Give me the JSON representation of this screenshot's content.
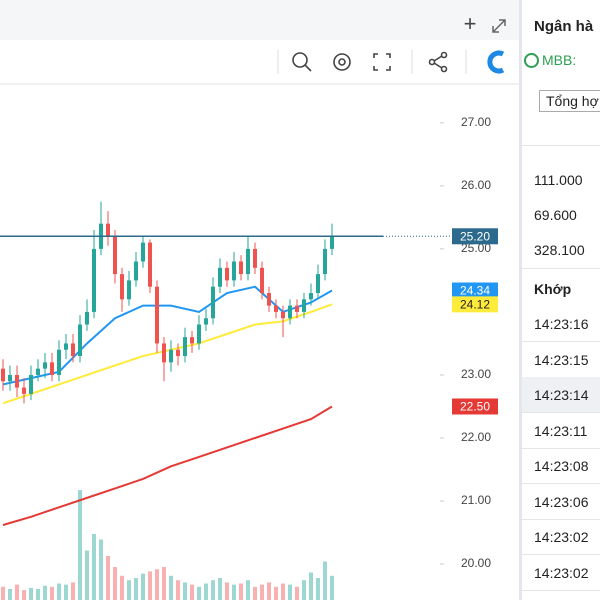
{
  "chart_data": {
    "type": "candlestick",
    "ylim": [
      19.43,
      27.6
    ],
    "yticks": [
      {
        "value": 27,
        "label": "27.00"
      },
      {
        "value": 26,
        "label": "26.00"
      },
      {
        "value": 25,
        "label": "25.00"
      },
      {
        "value": 23,
        "label": "23.00"
      },
      {
        "value": 22,
        "label": "22.00"
      },
      {
        "value": 21,
        "label": "21.00"
      },
      {
        "value": 20,
        "label": "20.00"
      }
    ],
    "up_color": "#26a69a",
    "down_color": "#ef5350",
    "open": [
      23.1,
      22.9,
      23.0,
      22.8,
      22.7,
      23.0,
      23.1,
      23.2,
      23.0,
      23.4,
      23.5,
      23.3,
      23.8,
      24.0,
      25.0,
      25.4,
      25.2,
      24.6,
      24.2,
      24.5,
      24.8,
      25.1,
      24.4,
      23.5,
      23.2,
      23.4,
      23.3,
      23.6,
      23.5,
      23.8,
      23.9,
      24.4,
      24.7,
      24.5,
      24.8,
      24.6,
      25.0,
      24.7,
      24.3,
      24.1,
      24.0,
      23.9,
      24.1,
      24.0,
      24.2,
      24.3,
      24.6,
      25.0
    ],
    "high": [
      23.25,
      23.15,
      23.15,
      22.95,
      23.15,
      23.25,
      23.35,
      23.35,
      23.55,
      23.65,
      23.65,
      23.95,
      24.2,
      25.3,
      25.75,
      25.6,
      25.3,
      24.7,
      24.65,
      24.95,
      25.2,
      25.15,
      24.5,
      23.6,
      23.55,
      23.5,
      23.75,
      23.7,
      23.95,
      24.05,
      24.55,
      24.85,
      24.8,
      24.95,
      24.9,
      25.2,
      25.1,
      24.8,
      24.4,
      24.2,
      24.1,
      24.2,
      24.2,
      24.3,
      24.45,
      24.75,
      25.15,
      25.4
    ],
    "low": [
      22.75,
      22.75,
      22.65,
      22.55,
      22.6,
      22.9,
      22.95,
      22.9,
      22.9,
      23.25,
      23.2,
      23.2,
      23.7,
      23.9,
      24.9,
      25.05,
      24.45,
      24.0,
      24.1,
      24.4,
      24.7,
      24.3,
      23.35,
      22.9,
      23.05,
      23.15,
      23.2,
      23.35,
      23.4,
      23.7,
      23.8,
      24.3,
      24.4,
      24.4,
      24.5,
      24.5,
      24.6,
      24.2,
      24.0,
      23.9,
      23.6,
      23.8,
      23.9,
      23.9,
      24.1,
      24.2,
      24.5,
      24.9
    ],
    "close": [
      22.9,
      23.0,
      22.8,
      22.7,
      23.0,
      23.1,
      23.2,
      23.0,
      23.4,
      23.5,
      23.3,
      23.8,
      24.0,
      25.0,
      25.4,
      25.2,
      24.6,
      24.2,
      24.5,
      24.8,
      25.1,
      24.4,
      23.5,
      23.2,
      23.4,
      23.3,
      23.6,
      23.5,
      23.8,
      23.9,
      24.4,
      24.7,
      24.5,
      24.8,
      24.6,
      25.0,
      24.7,
      24.3,
      24.1,
      24.0,
      23.9,
      24.1,
      24.0,
      24.2,
      24.3,
      24.6,
      25.0,
      25.2
    ],
    "volume": [
      12,
      10,
      14,
      9,
      11,
      10,
      13,
      12,
      15,
      14,
      16,
      100,
      45,
      60,
      55,
      40,
      30,
      22,
      18,
      20,
      24,
      26,
      28,
      30,
      22,
      18,
      16,
      14,
      12,
      15,
      18,
      20,
      16,
      14,
      15,
      18,
      12,
      14,
      16,
      12,
      15,
      14,
      12,
      18,
      25,
      20,
      35,
      22
    ],
    "moving_averages": [
      {
        "color": "#2196f3",
        "x": [
          0,
          4,
          8,
          12,
          16,
          20,
          24,
          28,
          32,
          36,
          40,
          44,
          47
        ],
        "values": [
          22.85,
          22.95,
          23.05,
          23.5,
          23.9,
          24.1,
          24.1,
          24.0,
          24.3,
          24.4,
          24.0,
          24.15,
          24.34
        ]
      },
      {
        "color": "#ffeb3b",
        "x": [
          0,
          4,
          8,
          12,
          16,
          20,
          24,
          28,
          32,
          36,
          40,
          44,
          47
        ],
        "values": [
          22.55,
          22.7,
          22.85,
          23.0,
          23.15,
          23.3,
          23.4,
          23.5,
          23.65,
          23.8,
          23.85,
          24.0,
          24.12
        ]
      },
      {
        "color": "#e53935",
        "x": [
          0,
          4,
          8,
          12,
          16,
          20,
          24,
          28,
          32,
          36,
          40,
          44,
          47
        ],
        "values": [
          20.62,
          20.75,
          20.9,
          21.05,
          21.2,
          21.35,
          21.55,
          21.7,
          21.85,
          22.0,
          22.15,
          22.3,
          22.5
        ]
      }
    ],
    "price_tags": [
      {
        "value": 25.2,
        "label": "25.20",
        "color": "#2b6a8c"
      },
      {
        "value": 24.34,
        "label": "24.34",
        "color": "#2196f3"
      },
      {
        "value": 24.12,
        "label": "24.12",
        "color": "#ffeb3b"
      },
      {
        "value": 22.5,
        "label": "22.50",
        "color": "#e53935"
      }
    ]
  },
  "sidebar": {
    "title": "Ngân hà",
    "symbol": "MBB:",
    "select": "Tổng hợ",
    "stats": [
      "111.000",
      "69.600",
      "328.100"
    ],
    "section": "Khớp",
    "times": [
      "14:23:16",
      "14:23:15",
      "14:23:14",
      "14:23:11",
      "14:23:08",
      "14:23:06",
      "14:23:02",
      "14:23:02"
    ]
  }
}
